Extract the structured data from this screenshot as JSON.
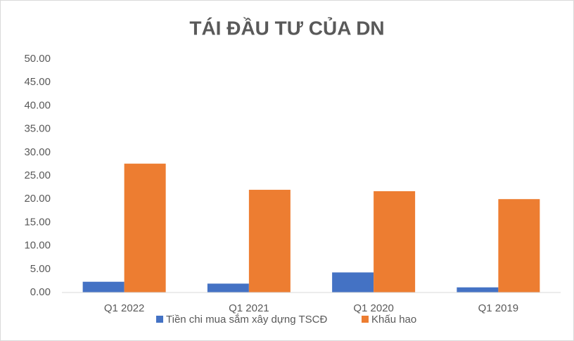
{
  "chart_data": {
    "type": "bar",
    "title": "TÁI ĐẦU TƯ CỦA DN",
    "categories": [
      "Q1 2022",
      "Q1 2021",
      "Q1 2020",
      "Q1 2019"
    ],
    "series": [
      {
        "name": "Tiền chi mua sắm xây dựng TSCĐ",
        "color": "#4472c4",
        "values": [
          2.3,
          1.9,
          4.3,
          1.1
        ]
      },
      {
        "name": "Khấu hao",
        "color": "#ed7d31",
        "values": [
          27.6,
          22.0,
          21.7,
          20.0
        ]
      }
    ],
    "ylim": [
      0,
      50
    ],
    "yticks": [
      {
        "value": 0,
        "label": "0.00"
      },
      {
        "value": 5,
        "label": "5.00"
      },
      {
        "value": 10,
        "label": "10.00"
      },
      {
        "value": 15,
        "label": "15.00"
      },
      {
        "value": 20,
        "label": "20.00"
      },
      {
        "value": 25,
        "label": "25.00"
      },
      {
        "value": 30,
        "label": "30.00"
      },
      {
        "value": 35,
        "label": "35.00"
      },
      {
        "value": 40,
        "label": "40.00"
      },
      {
        "value": 45,
        "label": "45.00"
      },
      {
        "value": 50,
        "label": "50.00"
      }
    ],
    "grid": false,
    "legend": "bottom"
  }
}
